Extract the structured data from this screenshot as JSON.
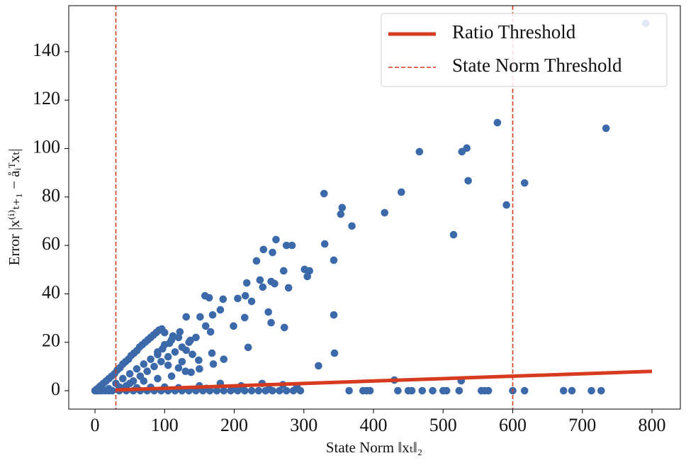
{
  "chart_data": {
    "type": "scatter",
    "x_label": "State Norm ‖xₜ‖₂",
    "y_label": "Error |x⁽ⁱ⁾ₜ₊₁ − åᵢᵀxₜ|",
    "xlim": [
      -37.7,
      840.7
    ],
    "ylim": [
      -7.6,
      159
    ],
    "xticks": [
      0,
      100,
      200,
      300,
      400,
      500,
      600,
      700,
      800
    ],
    "yticks": [
      0,
      20,
      40,
      60,
      80,
      100,
      120,
      140
    ],
    "scatter": {
      "color": "#3b69a9",
      "x": [
        791,
        734,
        578,
        466,
        527,
        534,
        536,
        617,
        591,
        515,
        440,
        416,
        329,
        355,
        353,
        369,
        330,
        343,
        343,
        344,
        321,
        430,
        526,
        260,
        275,
        283,
        242,
        232,
        255,
        301,
        308,
        305,
        271,
        237,
        253,
        258,
        278,
        241,
        218,
        216,
        225,
        249,
        253,
        272,
        220,
        215,
        199,
        205,
        184,
        180,
        164,
        158,
        169,
        159,
        166,
        168,
        149,
        138,
        120,
        105,
        112,
        122,
        131,
        151,
        131,
        137,
        97,
        90,
        107,
        2,
        5,
        8,
        12,
        16,
        20,
        24,
        28,
        32,
        36,
        40,
        44,
        48,
        52,
        56,
        60,
        64,
        68,
        72,
        76,
        80,
        84,
        88,
        92,
        96,
        100,
        30,
        40,
        50,
        60,
        70,
        80,
        90,
        100,
        110,
        120,
        45,
        55,
        65,
        75,
        85,
        95,
        105,
        115,
        125,
        135,
        145,
        125,
        140,
        35,
        50,
        70,
        90,
        110,
        130,
        150,
        170,
        185,
        150,
        180,
        210,
        240,
        270,
        290,
        0,
        3,
        6,
        10,
        15,
        20,
        25,
        35,
        45,
        55,
        65,
        75,
        85,
        95,
        105,
        115,
        125,
        135,
        145,
        155,
        165,
        175,
        185,
        195,
        205,
        215,
        225,
        235,
        245,
        255,
        265,
        275,
        285,
        295,
        365,
        385,
        390,
        395,
        435,
        450,
        455,
        470,
        485,
        500,
        505,
        523,
        555,
        560,
        565,
        600,
        617,
        673,
        685,
        713,
        727,
        10,
        20,
        40,
        60,
        80,
        100,
        120,
        160,
        200,
        250
      ],
      "y": [
        151.7,
        108.4,
        110.7,
        98.7,
        98.7,
        100.2,
        86.7,
        85.8,
        76.7,
        64.4,
        82,
        73.5,
        81.4,
        75.6,
        72.9,
        68,
        60.6,
        53.9,
        31.3,
        15.5,
        10.3,
        4.4,
        4.1,
        62.4,
        60,
        60,
        58.3,
        53.6,
        57.1,
        50.1,
        49.5,
        47.2,
        49.5,
        45.7,
        45.1,
        44.2,
        42.5,
        42.8,
        44.5,
        39.2,
        36.9,
        32.5,
        28.1,
        26.1,
        17.9,
        30.2,
        26.7,
        38.1,
        37.8,
        33.4,
        38.4,
        39.2,
        31.3,
        26.7,
        24.3,
        15.5,
        12.6,
        7.6,
        9.4,
        10.5,
        22.6,
        24.3,
        30.5,
        30.5,
        16.7,
        20.8,
        17.3,
        14.9,
        19.6,
        0.5,
        1.2,
        2,
        3,
        4,
        5,
        6,
        7,
        8.5,
        9.5,
        11,
        12,
        13,
        14.5,
        15.5,
        16.5,
        18,
        19,
        20,
        21,
        22,
        23,
        24,
        25,
        25.5,
        24,
        3,
        5,
        7,
        9,
        11,
        13,
        16,
        19,
        21,
        22,
        2,
        4,
        6,
        8,
        10,
        12,
        14,
        16,
        18,
        20,
        22,
        12,
        15,
        1.5,
        3,
        4,
        5,
        6,
        8,
        9,
        11,
        13,
        2,
        3,
        2,
        3,
        2.5,
        1.5,
        0,
        0,
        0,
        0,
        0,
        0,
        0,
        0,
        0,
        0,
        0,
        0,
        0,
        0,
        0,
        0,
        0,
        0,
        0,
        0,
        0,
        0,
        0,
        0,
        0,
        0,
        0,
        0,
        0,
        0,
        0,
        0,
        0,
        0,
        0,
        0,
        0,
        0,
        0,
        0,
        0,
        0,
        0,
        0,
        0,
        0,
        0,
        0,
        0,
        0,
        0,
        0,
        0,
        0,
        0,
        0.5,
        0.8,
        1,
        1.2,
        1.4,
        1.5,
        1.2,
        1,
        0.8,
        0.6
      ]
    },
    "lines": [
      {
        "name": "Ratio Threshold",
        "color": "#d63b1f",
        "x": [
          30,
          800
        ],
        "y": [
          0.3,
          8
        ]
      }
    ],
    "vlines": [
      {
        "name": "State Norm Threshold",
        "color": "#d63b1f",
        "style": "dashed",
        "x": [
          30,
          600
        ]
      }
    ],
    "legend": "upper right"
  }
}
